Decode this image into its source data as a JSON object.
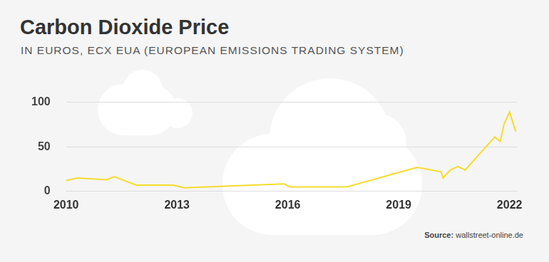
{
  "chart_data": {
    "type": "line",
    "title": "Carbon Dioxide Price",
    "subtitle": "IN EUROS, ECX EUA (EUROPEAN EMISSIONS TRADING SYSTEM)",
    "source_label": "Source:",
    "source": "wallstreet-online.de",
    "x": [
      2010.0,
      2010.3,
      2011.1,
      2011.3,
      2011.9,
      2012.9,
      2013.2,
      2015.9,
      2016.05,
      2017.6,
      2019.5,
      2020.15,
      2020.2,
      2020.4,
      2020.6,
      2020.8,
      2021.6,
      2021.75,
      2021.85,
      2022.0,
      2022.17
    ],
    "values": [
      12,
      15,
      13,
      16.5,
      7,
      7,
      4,
      8.5,
      5,
      5,
      27,
      22,
      15,
      24,
      28,
      24,
      61,
      56,
      75,
      89,
      67
    ],
    "color": "#f5dc2c",
    "xlim": [
      2010,
      2022.2
    ],
    "xticks": [
      2010,
      2013,
      2016,
      2019,
      2022
    ],
    "ylim": [
      0,
      100
    ],
    "yticks": [
      0,
      50,
      100
    ],
    "grid": true
  }
}
